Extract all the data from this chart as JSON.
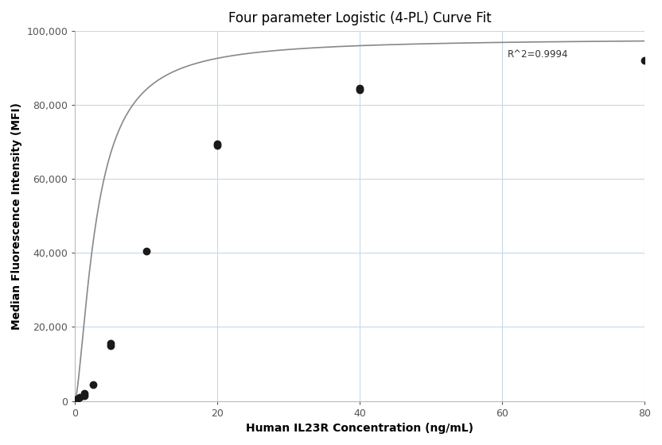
{
  "title": "Four parameter Logistic (4-PL) Curve Fit",
  "xlabel": "Human IL23R Concentration (ng/mL)",
  "ylabel": "Median Fluorescence Intensity (MFI)",
  "r_squared": "R^2=0.9994",
  "scatter_x": [
    0.156,
    0.313,
    0.625,
    1.25,
    1.25,
    2.5,
    5.0,
    5.0,
    10.0,
    20.0,
    20.0,
    40.0,
    40.0,
    80.0
  ],
  "scatter_y": [
    300,
    500,
    1000,
    1500,
    2000,
    4500,
    15000,
    15500,
    40500,
    69000,
    69500,
    84000,
    84500,
    92000
  ],
  "xlim": [
    0,
    80
  ],
  "ylim": [
    0,
    100000
  ],
  "yticks": [
    0,
    20000,
    40000,
    60000,
    80000,
    100000
  ],
  "ytick_labels": [
    "0",
    "20,000",
    "40,000",
    "60,000",
    "80,000",
    "100,000"
  ],
  "xticks": [
    0,
    20,
    40,
    60,
    80
  ],
  "background_color": "#ffffff",
  "grid_color": "#c8d8e8",
  "scatter_color": "#1a1a1a",
  "curve_color": "#888888",
  "scatter_size": 50,
  "title_fontsize": 12,
  "label_fontsize": 10,
  "tick_fontsize": 9
}
